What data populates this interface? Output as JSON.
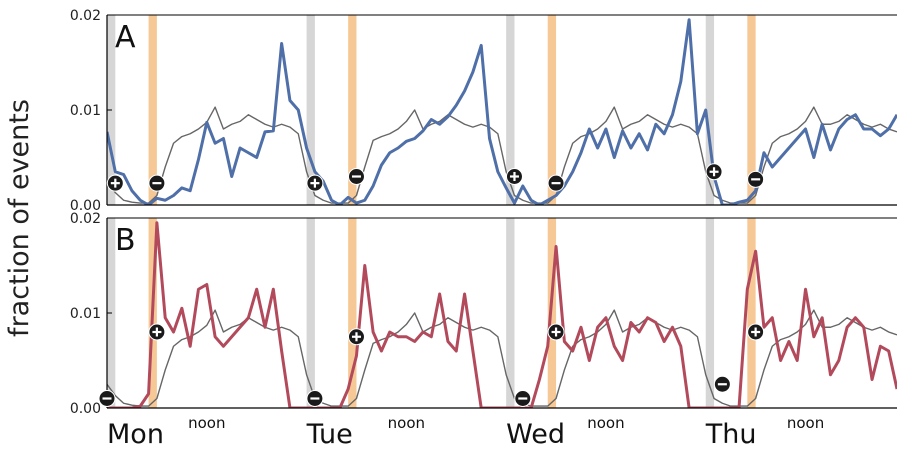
{
  "figure": {
    "ylabel": "fraction of events",
    "day_labels": [
      "Mon",
      "Tue",
      "Wed",
      "Thu"
    ],
    "noon_label": "noon"
  },
  "chart_data": [
    {
      "type": "line",
      "panel_label": "A",
      "ylim": [
        0,
        0.02
      ],
      "yticks": [
        "0.00",
        "0.01",
        "0.02"
      ],
      "x_unit": "hours since Monday 00:00",
      "xlim": [
        0,
        95
      ],
      "highlight_bands": {
        "grey": [
          [
            0,
            1
          ],
          [
            24,
            25
          ],
          [
            48,
            49
          ],
          [
            72,
            73
          ]
        ],
        "orange": [
          [
            5,
            6
          ],
          [
            29,
            30
          ],
          [
            53,
            54
          ],
          [
            77,
            78
          ]
        ]
      },
      "markers": [
        {
          "x": 1,
          "y": 0.0023,
          "sign": "+"
        },
        {
          "x": 6,
          "y": 0.0023,
          "sign": "-"
        },
        {
          "x": 25,
          "y": 0.0023,
          "sign": "+"
        },
        {
          "x": 30,
          "y": 0.003,
          "sign": "-"
        },
        {
          "x": 49,
          "y": 0.003,
          "sign": "+"
        },
        {
          "x": 54,
          "y": 0.0023,
          "sign": "-"
        },
        {
          "x": 73,
          "y": 0.0035,
          "sign": "+"
        },
        {
          "x": 78,
          "y": 0.0027,
          "sign": "-"
        }
      ],
      "series": [
        {
          "color": "#4f6fa8",
          "values": [
            0.0077,
            0.0035,
            0.0032,
            0.0015,
            0.0005,
            0.0,
            0.0007,
            0.0005,
            0.001,
            0.0018,
            0.0015,
            0.0048,
            0.0087,
            0.0065,
            0.007,
            0.003,
            0.006,
            0.0055,
            0.005,
            0.0077,
            0.0078,
            0.017,
            0.011,
            0.01,
            0.006,
            0.0035,
            0.0025,
            0.0005,
            0.0,
            0.0008,
            0.0002,
            0.0005,
            0.002,
            0.0042,
            0.0055,
            0.006,
            0.0067,
            0.007,
            0.0078,
            0.009,
            0.0085,
            0.0093,
            0.0105,
            0.012,
            0.014,
            0.0168,
            0.007,
            0.0035,
            0.0018,
            0.0002,
            0.002,
            0.0005,
            0.0,
            0.0005,
            0.001,
            0.002,
            0.0035,
            0.0055,
            0.008,
            0.006,
            0.008,
            0.005,
            0.0078,
            0.006,
            0.0075,
            0.0058,
            0.0085,
            0.0075,
            0.0095,
            0.013,
            0.0195,
            0.0075,
            0.01,
            0.003,
            0.0,
            0.0,
            0.0003,
            0.0005,
            0.0015,
            0.0055,
            0.004,
            0.005,
            0.006,
            0.007,
            0.008,
            0.005,
            0.0085,
            0.0058,
            0.008,
            0.009,
            0.0095,
            0.008,
            0.008,
            0.0073,
            0.008,
            0.0095
          ]
        },
        {
          "color": "#666666",
          "values": [
            0.0025,
            0.0013,
            0.0005,
            0.0003,
            0.0002,
            0.0002,
            0.001,
            0.004,
            0.0065,
            0.0072,
            0.0075,
            0.008,
            0.0087,
            0.0103,
            0.008,
            0.0085,
            0.0088,
            0.0095,
            0.009,
            0.0085,
            0.0082,
            0.0085,
            0.0082,
            0.0075,
            0.0035,
            0.001,
            0.0005,
            0.0002,
            0.0002,
            0.0002,
            0.001,
            0.004,
            0.0068,
            0.0072,
            0.0075,
            0.008,
            0.0088,
            0.01,
            0.008,
            0.0085,
            0.0088,
            0.0095,
            0.009,
            0.0085,
            0.0082,
            0.0085,
            0.0082,
            0.0075,
            0.0035,
            0.001,
            0.0005,
            0.0002,
            0.0002,
            0.0002,
            0.001,
            0.004,
            0.0065,
            0.0072,
            0.0075,
            0.008,
            0.0088,
            0.0103,
            0.008,
            0.0085,
            0.0088,
            0.0095,
            0.009,
            0.0085,
            0.0082,
            0.0085,
            0.0082,
            0.0075,
            0.0035,
            0.001,
            0.0005,
            0.0002,
            0.0002,
            0.0002,
            0.001,
            0.004,
            0.0065,
            0.0072,
            0.0075,
            0.008,
            0.0088,
            0.0103,
            0.0085,
            0.0085,
            0.0088,
            0.0095,
            0.009,
            0.0085,
            0.0082,
            0.0085,
            0.008,
            0.0077
          ]
        }
      ]
    },
    {
      "type": "line",
      "panel_label": "B",
      "ylim": [
        0,
        0.02
      ],
      "yticks": [
        "0.00",
        "0.01",
        "0.02"
      ],
      "x_unit": "hours since Monday 00:00",
      "xlim": [
        0,
        95
      ],
      "highlight_bands": {
        "grey": [
          [
            0,
            1
          ],
          [
            24,
            25
          ],
          [
            48,
            49
          ],
          [
            72,
            73
          ]
        ],
        "orange": [
          [
            5,
            6
          ],
          [
            29,
            30
          ],
          [
            53,
            54
          ],
          [
            77,
            78
          ]
        ]
      },
      "markers": [
        {
          "x": 0,
          "y": 0.001,
          "sign": "-"
        },
        {
          "x": 6,
          "y": 0.008,
          "sign": "+"
        },
        {
          "x": 25,
          "y": 0.001,
          "sign": "-"
        },
        {
          "x": 30,
          "y": 0.0075,
          "sign": "+"
        },
        {
          "x": 50,
          "y": 0.001,
          "sign": "-"
        },
        {
          "x": 54,
          "y": 0.008,
          "sign": "+"
        },
        {
          "x": 74,
          "y": 0.0025,
          "sign": "-"
        },
        {
          "x": 78,
          "y": 0.008,
          "sign": "+"
        }
      ],
      "series": [
        {
          "color": "#b24a5c",
          "values": [
            0.0,
            0.0,
            0.0,
            0.0,
            0.0002,
            0.0015,
            0.0195,
            0.0095,
            0.008,
            0.0105,
            0.0065,
            0.0125,
            0.013,
            0.0075,
            0.0065,
            0.0075,
            0.0085,
            0.0095,
            0.0125,
            0.0085,
            0.0125,
            0.006,
            0.0,
            0.0,
            0.0,
            0.0,
            0.0,
            0.0,
            0.0,
            0.002,
            0.0055,
            0.015,
            0.008,
            0.006,
            0.008,
            0.0075,
            0.0075,
            0.007,
            0.008,
            0.0075,
            0.012,
            0.007,
            0.006,
            0.012,
            0.006,
            0.0,
            0.0,
            0.0,
            0.0,
            0.0,
            0.0,
            0.0,
            0.003,
            0.0065,
            0.017,
            0.007,
            0.006,
            0.0085,
            0.005,
            0.0085,
            0.0095,
            0.0065,
            0.005,
            0.009,
            0.008,
            0.0095,
            0.009,
            0.007,
            0.0085,
            0.0065,
            0.0,
            0.0,
            0.0,
            0.0,
            0.0,
            0.0,
            0.0,
            0.0125,
            0.0165,
            0.0085,
            0.0095,
            0.005,
            0.007,
            0.005,
            0.0125,
            0.0075,
            0.0095,
            0.0035,
            0.005,
            0.0085,
            0.0095,
            0.0085,
            0.003,
            0.0065,
            0.006,
            0.002
          ]
        },
        {
          "color": "#666666",
          "values": [
            0.0025,
            0.0013,
            0.0005,
            0.0003,
            0.0002,
            0.0002,
            0.001,
            0.004,
            0.0065,
            0.0072,
            0.0075,
            0.008,
            0.0087,
            0.0103,
            0.008,
            0.0085,
            0.0088,
            0.0095,
            0.009,
            0.0085,
            0.0082,
            0.0085,
            0.0082,
            0.0075,
            0.0035,
            0.001,
            0.0005,
            0.0002,
            0.0002,
            0.0002,
            0.001,
            0.004,
            0.0068,
            0.0072,
            0.0075,
            0.008,
            0.0088,
            0.01,
            0.008,
            0.0085,
            0.0088,
            0.0095,
            0.009,
            0.0085,
            0.0082,
            0.0085,
            0.0082,
            0.0075,
            0.0035,
            0.001,
            0.0005,
            0.0002,
            0.0002,
            0.0002,
            0.001,
            0.004,
            0.0065,
            0.0072,
            0.0075,
            0.008,
            0.0088,
            0.0103,
            0.008,
            0.0085,
            0.0088,
            0.0095,
            0.009,
            0.0085,
            0.0082,
            0.0085,
            0.0082,
            0.0075,
            0.0035,
            0.001,
            0.0005,
            0.0002,
            0.0002,
            0.0002,
            0.001,
            0.004,
            0.0065,
            0.0072,
            0.0075,
            0.008,
            0.0088,
            0.0103,
            0.0085,
            0.0085,
            0.0088,
            0.0095,
            0.009,
            0.0085,
            0.0082,
            0.0085,
            0.008,
            0.0077
          ]
        }
      ]
    }
  ]
}
